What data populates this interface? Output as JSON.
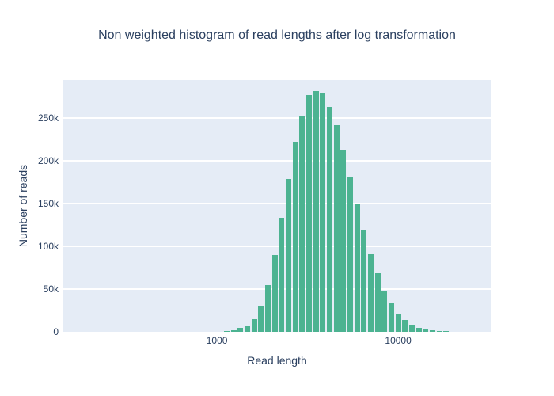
{
  "chart_data": {
    "type": "bar",
    "title": "Non weighted histogram of read lengths after log transformation",
    "xlabel": "Read length",
    "ylabel": "Number of reads",
    "x_scale": "log",
    "xlim": [
      142,
      32400
    ],
    "ylim": [
      0,
      294000
    ],
    "grid": "horizontal-only",
    "legend": "none",
    "x": [
      1134,
      1238,
      1349,
      1473,
      1608,
      1753,
      1913,
      2088,
      2276,
      2485,
      2712,
      2956,
      3228,
      3522,
      3840,
      4191,
      4574,
      4987,
      5443,
      5940,
      6478,
      7069,
      7716,
      8412,
      9181,
      10021,
      10926,
      11924,
      13015,
      14191,
      15488,
      16904,
      18430,
      20120,
      21958,
      23934,
      26121
    ],
    "values": [
      600,
      1800,
      4600,
      7400,
      15100,
      30600,
      54600,
      90100,
      133300,
      178100,
      222200,
      252500,
      276900,
      280900,
      278400,
      263000,
      241400,
      212700,
      181200,
      149400,
      118500,
      90700,
      68500,
      48400,
      33600,
      21300,
      13600,
      8300,
      4400,
      2400,
      1500,
      1000,
      700,
      450,
      300,
      200,
      150
    ],
    "x_ticks": [
      {
        "label": "1000",
        "value": 1000
      },
      {
        "label": "10000",
        "value": 10000
      }
    ],
    "y_ticks": [
      {
        "label": "0",
        "value": 0
      },
      {
        "label": "50k",
        "value": 50000
      },
      {
        "label": "100k",
        "value": 100000
      },
      {
        "label": "150k",
        "value": 150000
      },
      {
        "label": "200k",
        "value": 200000
      },
      {
        "label": "250k",
        "value": 250000
      }
    ]
  },
  "colors": {
    "bar": "#4cb391",
    "plot_background": "#e5ecf6",
    "gridline": "#ffffff",
    "text": "#2a3f5f",
    "page_background": "#ffffff"
  }
}
